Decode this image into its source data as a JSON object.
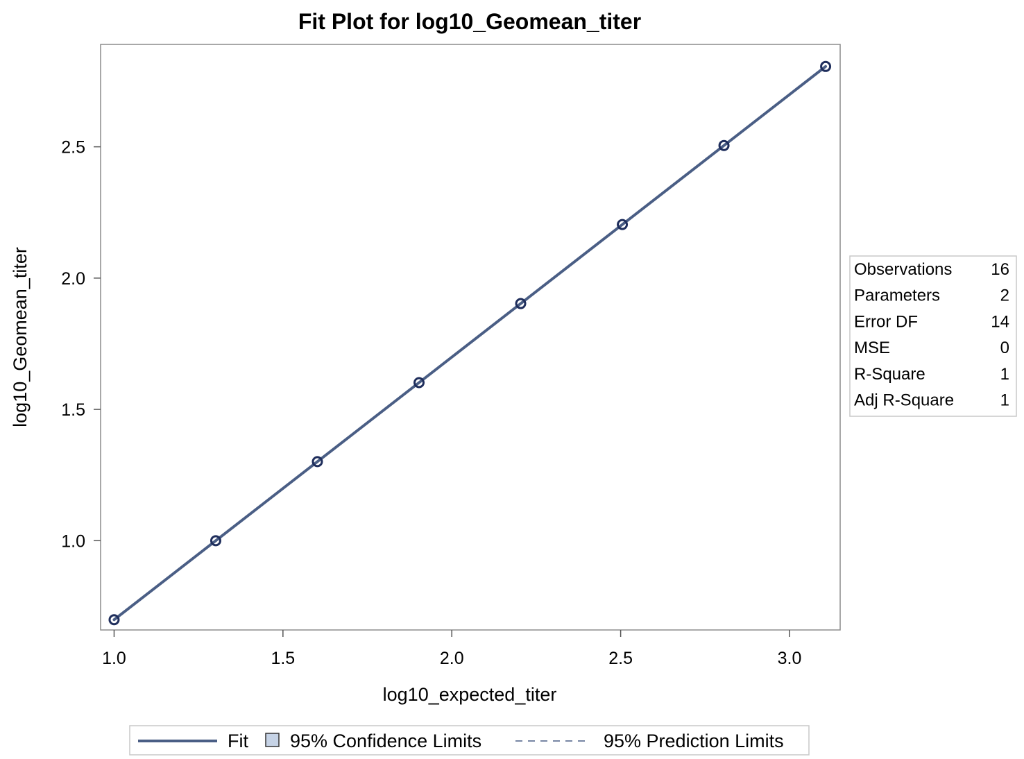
{
  "chart_data": {
    "type": "scatter",
    "title": "Fit Plot for log10_Geomean_titer",
    "xlabel": "log10_expected_titer",
    "ylabel": "log10_Geomean_titer",
    "xlim": [
      0.96,
      3.15
    ],
    "ylim": [
      0.66,
      2.89
    ],
    "xticks": [
      1.0,
      1.5,
      2.0,
      2.5,
      3.0
    ],
    "xtick_labels": [
      "1.0",
      "1.5",
      "2.0",
      "2.5",
      "3.0"
    ],
    "yticks": [
      1.0,
      1.5,
      2.0,
      2.5
    ],
    "ytick_labels": [
      "1.0",
      "1.5",
      "2.0",
      "2.5"
    ],
    "grid": false,
    "series": [
      {
        "name": "Fit",
        "kind": "line",
        "x": [
          1.0,
          3.107
        ],
        "y": [
          0.699,
          2.806
        ]
      },
      {
        "kind": "markers",
        "x": [
          1.0,
          1.301,
          1.602,
          1.903,
          2.204,
          2.505,
          2.806,
          3.107
        ],
        "y": [
          0.699,
          1.0,
          1.301,
          1.602,
          1.903,
          2.204,
          2.505,
          2.806
        ]
      }
    ],
    "stats": [
      {
        "label": "Observations",
        "value": "16"
      },
      {
        "label": "Parameters",
        "value": "2"
      },
      {
        "label": "Error DF",
        "value": "14"
      },
      {
        "label": "MSE",
        "value": "0"
      },
      {
        "label": "R-Square",
        "value": "1"
      },
      {
        "label": "Adj R-Square",
        "value": "1"
      }
    ],
    "legend": {
      "placement": "bottom",
      "items": [
        {
          "label": "Fit",
          "symbol": "line"
        },
        {
          "label": "95% Confidence Limits",
          "symbol": "box"
        },
        {
          "label": "95% Prediction Limits",
          "symbol": "dashed"
        }
      ]
    },
    "colors": {
      "fit_line": "#4a5e85",
      "marker": "#1f2e5c",
      "confidence_fill": "#c6d3e6",
      "frame": "#8c8c8c"
    }
  }
}
